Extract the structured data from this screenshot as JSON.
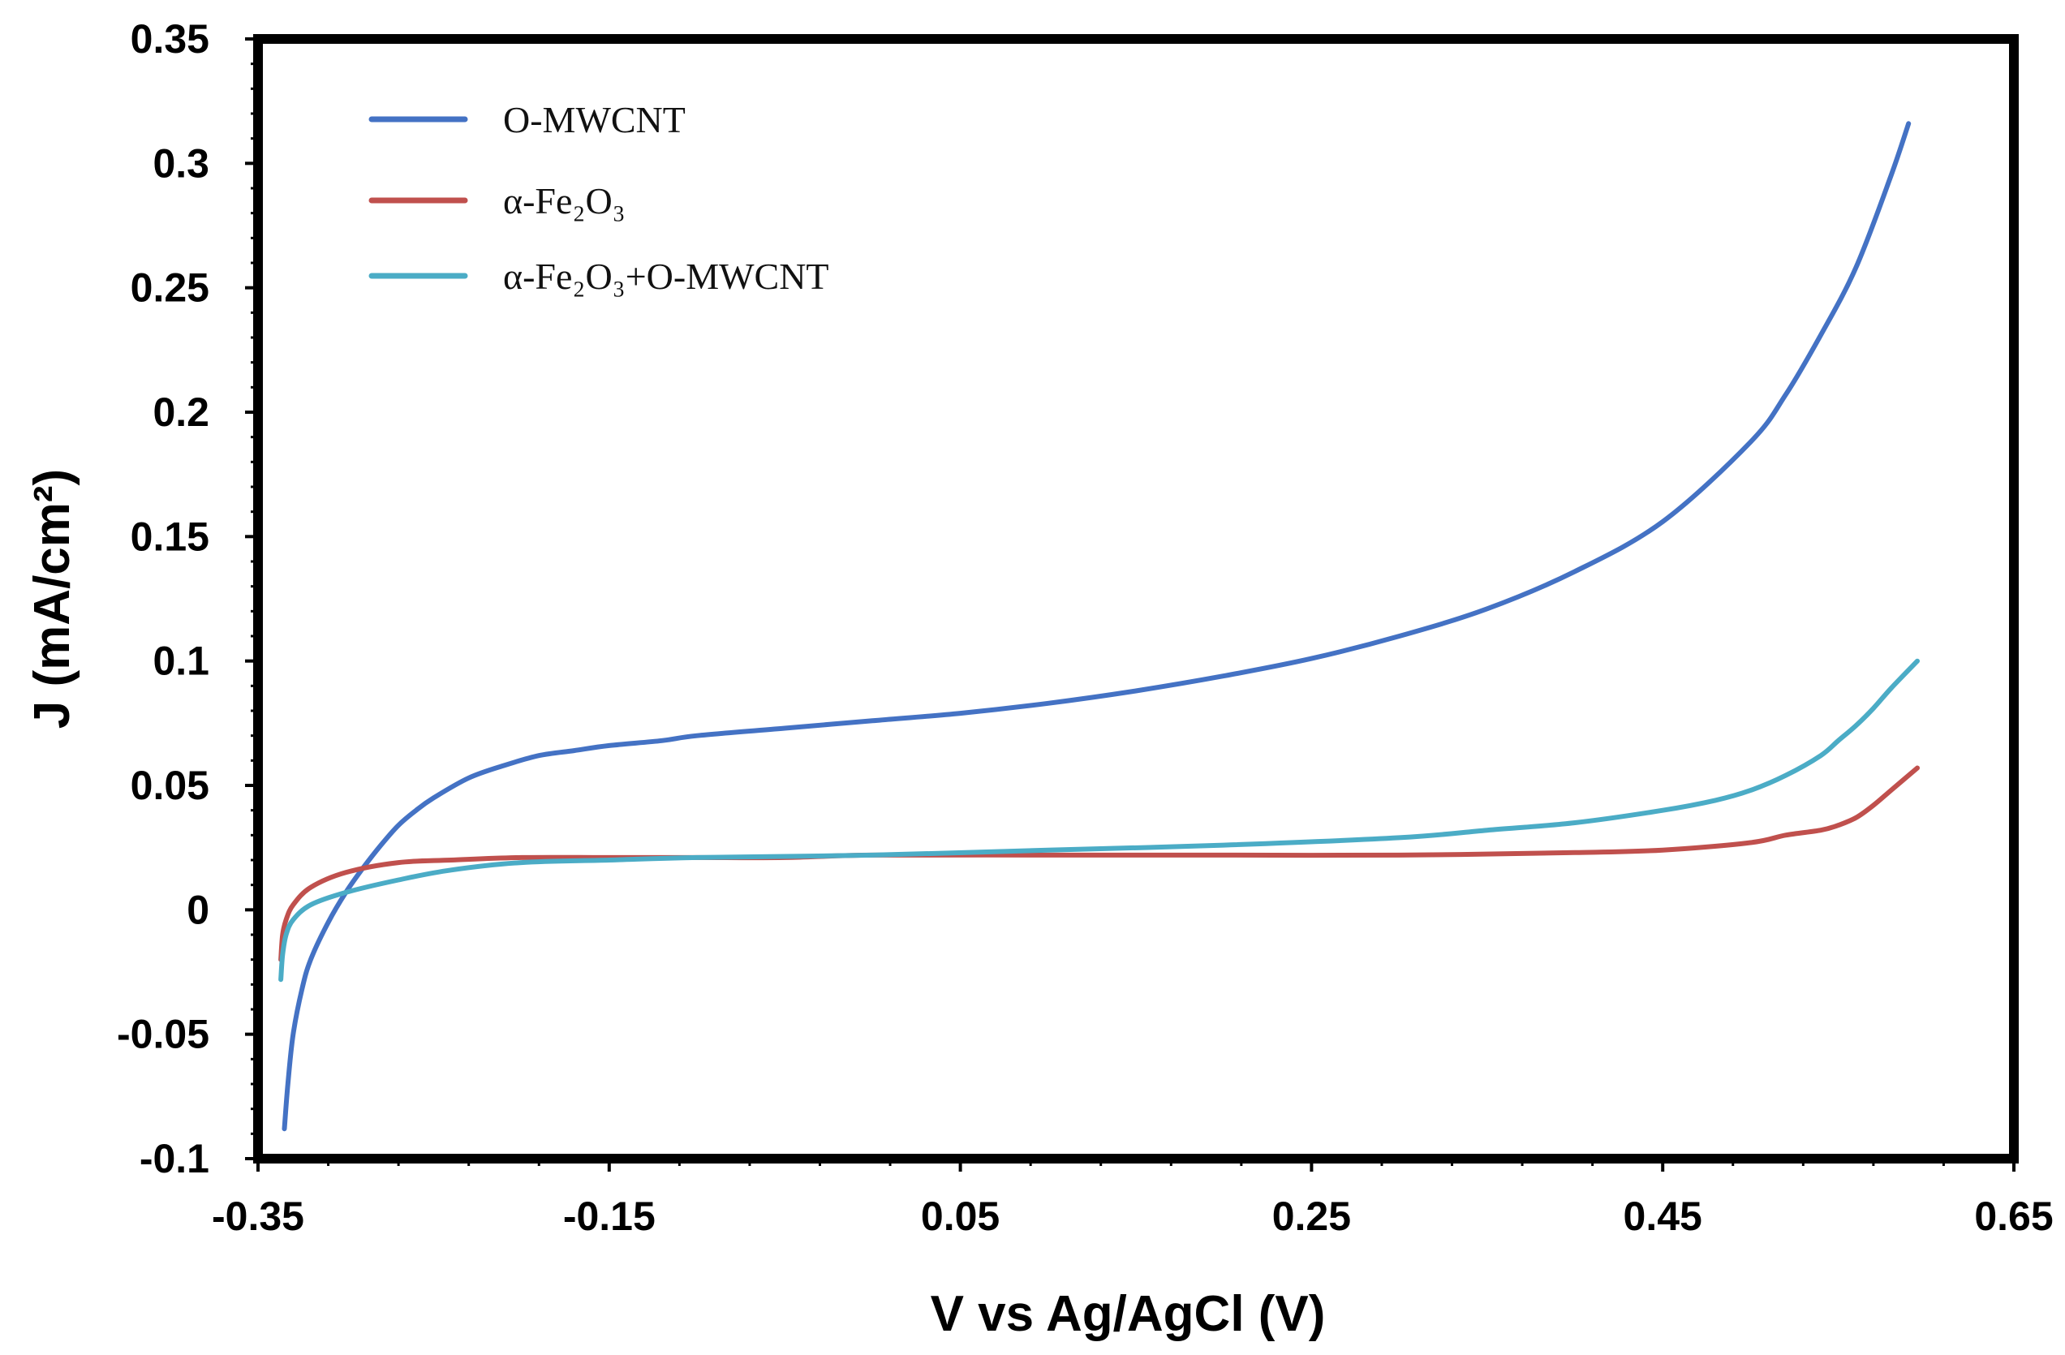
{
  "chart_data": {
    "type": "line",
    "title": "",
    "xlabel": "V vs Ag/AgCl (V)",
    "ylabel": "J (mA/cm²)",
    "xlim": [
      -0.35,
      0.65
    ],
    "ylim": [
      -0.1,
      0.35
    ],
    "xticks": [
      -0.35,
      -0.15,
      0.05,
      0.25,
      0.45,
      0.65
    ],
    "xtick_labels": [
      "-0.35",
      "-0.15",
      "0.05",
      "0.25",
      "0.45",
      "0.65"
    ],
    "yticks": [
      -0.1,
      -0.05,
      0,
      0.05,
      0.1,
      0.15,
      0.2,
      0.25,
      0.3,
      0.35
    ],
    "ytick_labels": [
      "-0.1",
      "-0.05",
      "0",
      "0.05",
      "0.1",
      "0.15",
      "0.2",
      "0.25",
      "0.3",
      "0.35"
    ],
    "grid": false,
    "legend_position": "top-left",
    "series": [
      {
        "name": "O-MWCNT",
        "color": "#4472C4",
        "x": [
          -0.335,
          -0.333,
          -0.33,
          -0.325,
          -0.32,
          -0.31,
          -0.3,
          -0.29,
          -0.28,
          -0.27,
          -0.26,
          -0.25,
          -0.23,
          -0.21,
          -0.19,
          -0.17,
          -0.15,
          -0.12,
          -0.1,
          -0.05,
          0.0,
          0.05,
          0.1,
          0.15,
          0.2,
          0.25,
          0.3,
          0.35,
          0.4,
          0.45,
          0.5,
          0.52,
          0.54,
          0.56,
          0.58,
          0.59
        ],
        "y": [
          -0.088,
          -0.07,
          -0.05,
          -0.032,
          -0.02,
          -0.005,
          0.007,
          0.017,
          0.026,
          0.034,
          0.04,
          0.045,
          0.053,
          0.058,
          0.062,
          0.064,
          0.066,
          0.068,
          0.07,
          0.073,
          0.076,
          0.079,
          0.083,
          0.088,
          0.094,
          0.101,
          0.11,
          0.121,
          0.136,
          0.156,
          0.188,
          0.207,
          0.231,
          0.258,
          0.295,
          0.316
        ]
      },
      {
        "name": "α-Fe₂O₃",
        "color": "#C0504D",
        "x": [
          -0.337,
          -0.336,
          -0.334,
          -0.33,
          -0.32,
          -0.3,
          -0.27,
          -0.24,
          -0.2,
          -0.15,
          -0.1,
          -0.05,
          0.0,
          0.1,
          0.2,
          0.3,
          0.4,
          0.45,
          0.5,
          0.52,
          0.54,
          0.55,
          0.56,
          0.57,
          0.58,
          0.595
        ],
        "y": [
          -0.02,
          -0.01,
          -0.004,
          0.002,
          0.009,
          0.015,
          0.019,
          0.02,
          0.021,
          0.021,
          0.021,
          0.021,
          0.022,
          0.022,
          0.022,
          0.022,
          0.023,
          0.024,
          0.027,
          0.03,
          0.032,
          0.034,
          0.037,
          0.042,
          0.048,
          0.057
        ]
      },
      {
        "name": "α-Fe₂O₃+O-MWCNT",
        "color": "#4BACC6",
        "x": [
          -0.337,
          -0.336,
          -0.334,
          -0.33,
          -0.32,
          -0.3,
          -0.27,
          -0.24,
          -0.2,
          -0.15,
          -0.1,
          0.0,
          0.1,
          0.2,
          0.3,
          0.35,
          0.4,
          0.45,
          0.48,
          0.5,
          0.52,
          0.54,
          0.55,
          0.56,
          0.57,
          0.58,
          0.595
        ],
        "y": [
          -0.028,
          -0.018,
          -0.01,
          -0.004,
          0.002,
          0.007,
          0.012,
          0.016,
          0.019,
          0.02,
          0.021,
          0.022,
          0.024,
          0.026,
          0.029,
          0.032,
          0.035,
          0.04,
          0.044,
          0.048,
          0.054,
          0.062,
          0.068,
          0.074,
          0.081,
          0.089,
          0.1
        ]
      }
    ]
  },
  "legend": {
    "entries": [
      {
        "name": "O-MWCNT",
        "color": "#4472C4"
      },
      {
        "name": "α-Fe₂O₃",
        "color": "#C0504D"
      },
      {
        "name": "α-Fe₂O₃+O-MWCNT",
        "color": "#4BACC6"
      }
    ]
  }
}
